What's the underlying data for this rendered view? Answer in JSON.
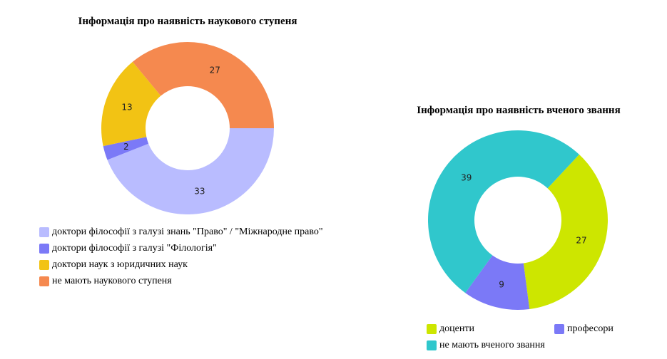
{
  "chart_data": [
    {
      "type": "pie",
      "title": "Інформація про наявність наукового ступеня",
      "categories": [
        "доктори філософії з галузі знань \"Право\" / \"Міжнародне право\"",
        "доктори філософії з галузі \"Філологія\"",
        "доктори наук з юридичних наук",
        "не мають наукового ступеня"
      ],
      "values": [
        33,
        2,
        13,
        27
      ],
      "colors": [
        "#b9bcff",
        "#7b79f7",
        "#f2c314",
        "#f5894f"
      ],
      "legend": "bottom-left"
    },
    {
      "type": "pie",
      "title": "Інформація про наявність вченого звання",
      "categories": [
        "доценти",
        "професори",
        "не мають вченого звання"
      ],
      "values": [
        27,
        9,
        39
      ],
      "colors": [
        "#cde600",
        "#7b79f7",
        "#30c7cc"
      ],
      "legend": "bottom"
    }
  ]
}
